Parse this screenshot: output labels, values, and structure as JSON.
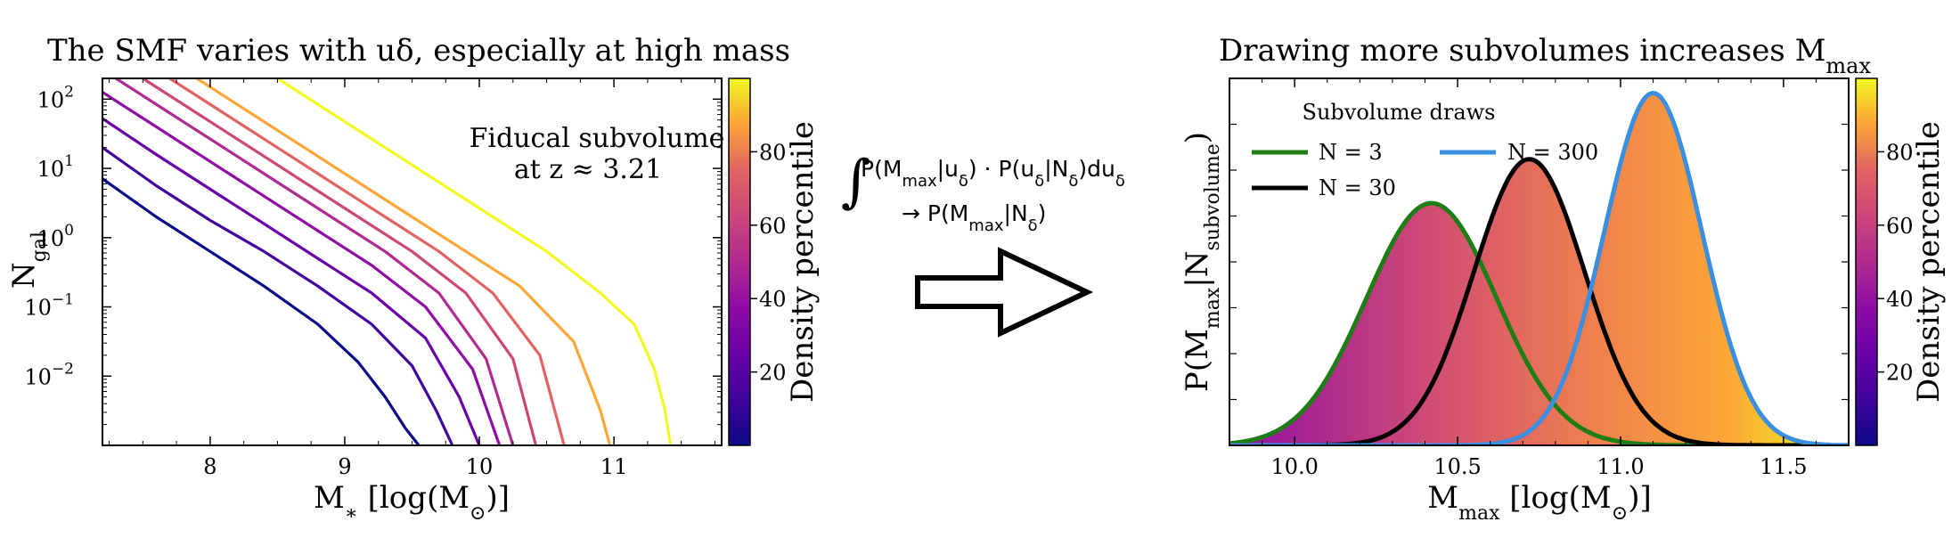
{
  "chart_data": [
    {
      "type": "line",
      "title": "The SMF varies with uδ, especially at high mass",
      "xlabel": "M∗ [log(M⊙)]",
      "ylabel": "Ngal",
      "xlim": [
        7.2,
        11.8
      ],
      "ylim_log10": [
        -3.0,
        2.3
      ],
      "yscale": "log",
      "xticks": [
        8,
        9,
        10,
        11
      ],
      "yticks": [
        {
          "exp": 2,
          "label": "10",
          "sup": "2"
        },
        {
          "exp": 1,
          "label": "10",
          "sup": "1"
        },
        {
          "exp": 0,
          "label": "10",
          "sup": "0"
        },
        {
          "exp": -1,
          "label": "10",
          "sup": "−1"
        },
        {
          "exp": -2,
          "label": "10",
          "sup": "−2"
        }
      ],
      "annotation_line1": "Fiducal subvolume",
      "annotation_line2": "at z ≈ 3.21",
      "series": [
        {
          "percentile": 2,
          "color": "#0d0887",
          "x": [
            7.2,
            7.6,
            8.0,
            8.4,
            8.8,
            9.1,
            9.3,
            9.45,
            9.55
          ],
          "log10_y": [
            0.85,
            0.3,
            -0.2,
            -0.7,
            -1.25,
            -1.8,
            -2.3,
            -2.75,
            -3.0
          ]
        },
        {
          "percentile": 14,
          "color": "#41049d",
          "x": [
            7.2,
            7.6,
            8.0,
            8.4,
            8.8,
            9.2,
            9.5,
            9.68,
            9.8
          ],
          "log10_y": [
            1.3,
            0.75,
            0.25,
            -0.2,
            -0.7,
            -1.25,
            -1.85,
            -2.5,
            -3.0
          ]
        },
        {
          "percentile": 26,
          "color": "#6a00a8",
          "x": [
            7.2,
            7.6,
            8.0,
            8.4,
            8.8,
            9.2,
            9.6,
            9.85,
            10.0
          ],
          "log10_y": [
            1.72,
            1.2,
            0.7,
            0.2,
            -0.3,
            -0.8,
            -1.45,
            -2.3,
            -3.0
          ]
        },
        {
          "percentile": 38,
          "color": "#8f0da4",
          "x": [
            7.2,
            7.6,
            8.0,
            8.4,
            8.8,
            9.2,
            9.6,
            9.95,
            10.15
          ],
          "log10_y": [
            2.1,
            1.6,
            1.1,
            0.6,
            0.1,
            -0.4,
            -1.0,
            -1.9,
            -3.0
          ]
        },
        {
          "percentile": 50,
          "color": "#b12a90",
          "x": [
            7.3,
            7.7,
            8.1,
            8.5,
            8.9,
            9.3,
            9.7,
            10.05,
            10.25
          ],
          "log10_y": [
            2.3,
            1.8,
            1.3,
            0.8,
            0.3,
            -0.2,
            -0.8,
            -1.75,
            -3.0
          ]
        },
        {
          "percentile": 62,
          "color": "#cc4778",
          "x": [
            7.5,
            7.9,
            8.3,
            8.7,
            9.1,
            9.5,
            9.9,
            10.25,
            10.42
          ],
          "log10_y": [
            2.3,
            1.8,
            1.3,
            0.8,
            0.3,
            -0.2,
            -0.8,
            -1.75,
            -3.0
          ]
        },
        {
          "percentile": 74,
          "color": "#e16462",
          "x": [
            7.7,
            8.1,
            8.5,
            8.9,
            9.3,
            9.7,
            10.1,
            10.45,
            10.63
          ],
          "log10_y": [
            2.3,
            1.8,
            1.3,
            0.8,
            0.3,
            -0.2,
            -0.8,
            -1.7,
            -3.0
          ]
        },
        {
          "percentile": 86,
          "color": "#fca636",
          "x": [
            7.9,
            8.3,
            8.7,
            9.1,
            9.5,
            9.9,
            10.3,
            10.7,
            10.9,
            10.97
          ],
          "log10_y": [
            2.3,
            1.8,
            1.3,
            0.8,
            0.3,
            -0.2,
            -0.7,
            -1.5,
            -2.5,
            -3.0
          ]
        },
        {
          "percentile": 98,
          "color": "#f0f921",
          "x": [
            8.5,
            8.9,
            9.3,
            9.7,
            10.1,
            10.5,
            10.9,
            11.15,
            11.3,
            11.38,
            11.42
          ],
          "log10_y": [
            2.3,
            1.8,
            1.3,
            0.8,
            0.3,
            -0.2,
            -0.8,
            -1.25,
            -1.9,
            -2.5,
            -3.0
          ]
        }
      ],
      "colorbar": {
        "label": "Density percentile",
        "ticks": [
          20,
          40,
          60,
          80
        ],
        "range": [
          0,
          100
        ],
        "colormap": "plasma"
      }
    },
    {
      "type": "line",
      "title": "Drawing more subvolumes increases Mₘₐₓ",
      "xlabel": "Mmax [log(M⊙)]",
      "ylabel": "P(Mmax|Nsubvolume)",
      "xlim": [
        9.8,
        11.7
      ],
      "ylim": [
        0,
        1.0
      ],
      "xticks": [
        10.0,
        10.5,
        11.0,
        11.5
      ],
      "xticklabels": [
        "10.0",
        "10.5",
        "11.0",
        "11.5"
      ],
      "legend_title": "Subvolume draws",
      "legend_position": "top-left",
      "series": [
        {
          "name": "N = 3",
          "color": "#1e7d14",
          "mean": 10.42,
          "sigma": 0.2,
          "peak": 0.66
        },
        {
          "name": "N = 30",
          "color": "#000000",
          "mean": 10.72,
          "sigma": 0.17,
          "peak": 0.78
        },
        {
          "name": "N = 300",
          "color": "#3a8fe0",
          "mean": 11.1,
          "sigma": 0.15,
          "peak": 0.96
        }
      ],
      "fill": "plasma gradient by Mmax under the N = 300 envelope",
      "colorbar": {
        "label": "Density percentile",
        "ticks": [
          20,
          40,
          60,
          80
        ],
        "range": [
          0,
          100
        ],
        "colormap": "plasma"
      }
    }
  ],
  "formula": {
    "integral": "∫",
    "line1": "P(Mmax|uδ) · P(uδ|Nδ)duδ",
    "line2": "→ P(Mmax|Nδ)"
  }
}
